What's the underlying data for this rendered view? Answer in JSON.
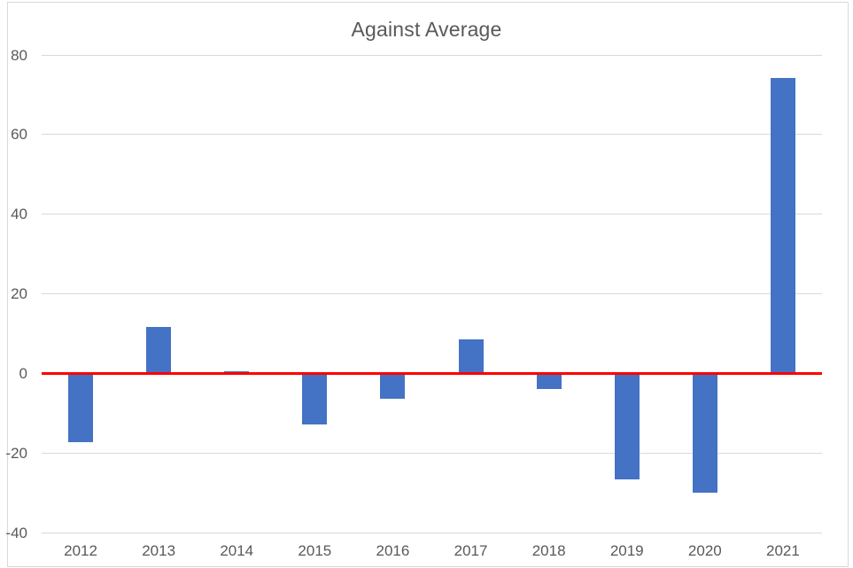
{
  "chart_data": {
    "type": "bar",
    "title": "Against Average",
    "categories": [
      "2012",
      "2013",
      "2014",
      "2015",
      "2016",
      "2017",
      "2018",
      "2019",
      "2020",
      "2021"
    ],
    "values": [
      -17.3,
      11.7,
      0.5,
      -12.9,
      -6.4,
      8.6,
      -4.0,
      -26.6,
      -29.9,
      74.3
    ],
    "xlabel": "",
    "ylabel": "",
    "ylim": [
      -40,
      80
    ],
    "yticks": [
      80,
      60,
      40,
      20,
      0,
      -20,
      -40
    ],
    "grid": true,
    "legend": "none",
    "zero_reference_line_value": 0,
    "colors": {
      "bar": "#4472c4",
      "zero_line": "#ff0000",
      "gridline": "#d9d9d9",
      "axis_labels": "#595959",
      "title": "#595959",
      "chart_border": "#d9d9d9",
      "background": "#ffffff"
    }
  }
}
